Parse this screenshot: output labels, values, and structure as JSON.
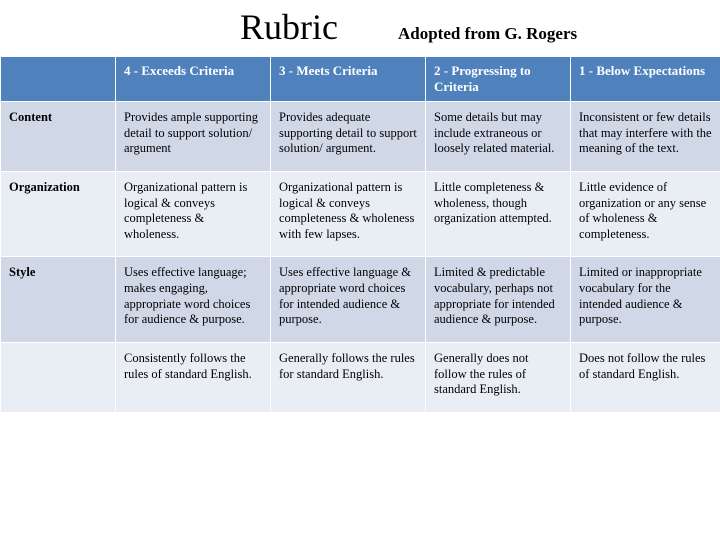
{
  "header": {
    "title": "Rubric",
    "attribution": "Adopted from G. Rogers"
  },
  "columns": {
    "c1": "4 - Exceeds Criteria",
    "c2": "3 - Meets Criteria",
    "c3": "2 - Progressing to Criteria",
    "c4": "1 - Below Expectations"
  },
  "rows": {
    "r1": {
      "label": "Content",
      "c1": "Provides ample supporting detail to support solution/ argument",
      "c2": "Provides adequate supporting detail to support solution/ argument.",
      "c3": "Some details but may include extraneous or loosely related material.",
      "c4": "Inconsistent or few details that may interfere with the meaning of the text."
    },
    "r2": {
      "label": "Organization",
      "c1": "Organizational pattern is logical & conveys completeness & wholeness.",
      "c2": "Organizational pattern is logical & conveys completeness & wholeness with few lapses.",
      "c3": "Little completeness & wholeness, though organization attempted.",
      "c4": "Little evidence of organization or any sense of wholeness & completeness."
    },
    "r3": {
      "label": "Style",
      "c1": "Uses effective language; makes engaging, appropriate word choices for audience & purpose.",
      "c2": "Uses effective language & appropriate word choices for intended audience & purpose.",
      "c3": "Limited & predictable vocabulary, perhaps not appropriate for intended audience & purpose.",
      "c4": "Limited or inappropriate vocabulary for the intended audience & purpose."
    },
    "r4": {
      "label": "",
      "c1": "Consistently follows the rules of standard English.",
      "c2": "Generally follows the rules for standard English.",
      "c3": "Generally does not follow the rules of standard English.",
      "c4": "Does not follow the rules of standard English."
    }
  },
  "colors": {
    "header_bg": "#4f81bd",
    "band_a": "#d0d8e8",
    "band_b": "#e9edf4"
  }
}
